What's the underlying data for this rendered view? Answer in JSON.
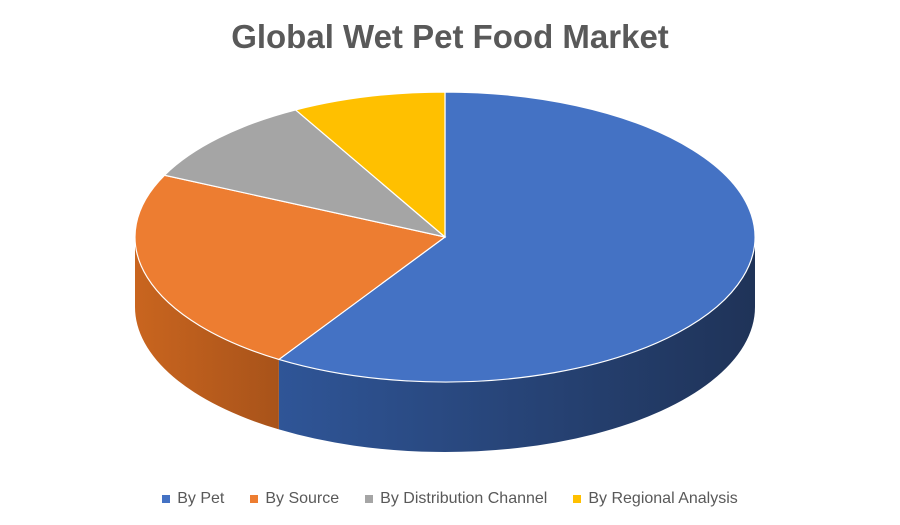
{
  "chart_data": {
    "type": "pie",
    "three_d": true,
    "title": "Global Wet Pet Food Market",
    "categories": [
      "By Pet",
      "By Source",
      "By Distribution Channel",
      "By Regional Analysis"
    ],
    "values": [
      59,
      23,
      10,
      8
    ],
    "colors": [
      "#4472C4",
      "#ED7D31",
      "#A5A5A5",
      "#FFC000"
    ],
    "side_colors": [
      "#2E4E8F",
      "#C0601E",
      "#7F7F7F",
      "#BF9000"
    ],
    "legend_position": "bottom"
  }
}
